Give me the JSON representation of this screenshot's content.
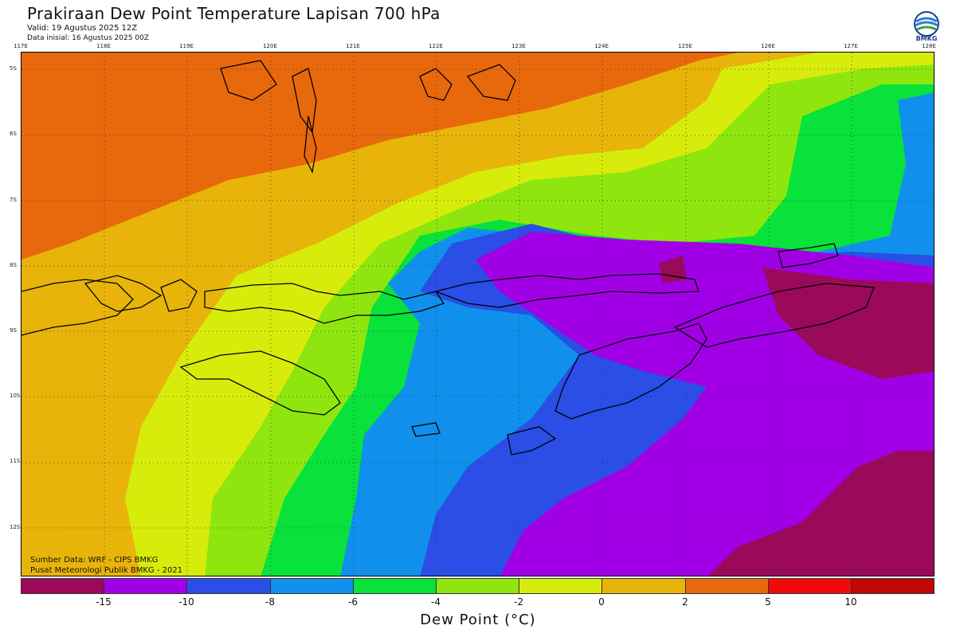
{
  "header": {
    "title": "Prakiraan Dew Point Temperature Lapisan 700 hPa",
    "valid": "Valid: 19 Agustus 2025 12Z",
    "init": "Data inisial: 16 Agustus 2025 00Z",
    "logo_text": "BMKG"
  },
  "map": {
    "lon_labels": [
      "117E",
      "118E",
      "119E",
      "120E",
      "121E",
      "122E",
      "123E",
      "124E",
      "125E",
      "126E",
      "127E",
      "128E"
    ],
    "lat_labels": [
      "5S",
      "6S",
      "7S",
      "8S",
      "9S",
      "10S",
      "11S",
      "12S"
    ],
    "credits": [
      "Sumber Data: WRF - CIPS BMKG",
      "Pusat Meteorologi Publik BMKG - 2021"
    ]
  },
  "colorbar": {
    "colors": [
      "#9b0a5a",
      "#a100e6",
      "#2a4ee6",
      "#1090ec",
      "#08e23a",
      "#8ee60e",
      "#d8ec0c",
      "#e8b40a",
      "#e8680c",
      "#f20a0a",
      "#c00606"
    ],
    "ticks": [
      "-15",
      "-10",
      "-8",
      "-6",
      "-4",
      "-2",
      "0",
      "2",
      "5",
      "10"
    ],
    "unit_label": "Dew Point (°C)"
  }
}
